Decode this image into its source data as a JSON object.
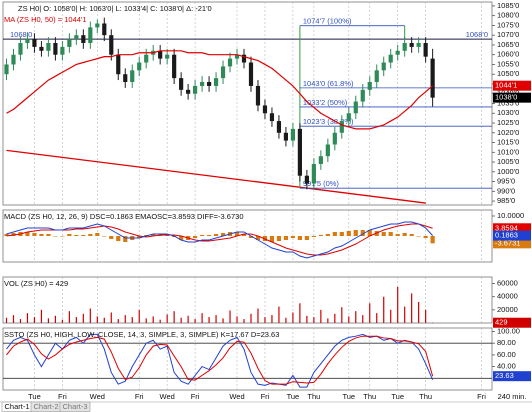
{
  "chart_data": [
    {
      "type": "candlestick",
      "title": "ZS H0| O: 1058'0| H: 1063'0| L: 1033'4| C: 1038'0| Δ: -21'0",
      "subtitle": "MA (ZS H0, 50) = 1044'1",
      "up_color": "#2e8b57",
      "down_color": "#1a1a1a",
      "last_color": "#000000",
      "last_label": "1038'0",
      "open": [
        1050,
        1055,
        1060,
        1066,
        1068,
        1064,
        1062,
        1066,
        1060,
        1064,
        1068,
        1070,
        1066,
        1074,
        1076,
        1070,
        1060,
        1050,
        1046,
        1052,
        1056,
        1060,
        1062,
        1058,
        1060,
        1048,
        1042,
        1040,
        1044,
        1046,
        1044,
        1048,
        1054,
        1058,
        1060,
        1056,
        1044,
        1034,
        1030,
        1026,
        1020,
        1016,
        1022,
        998,
        994,
        1004,
        1008,
        1014,
        1020,
        1026,
        1030,
        1036,
        1042,
        1046,
        1052,
        1056,
        1060,
        1062,
        1066,
        1064,
        1066,
        1058,
        null,
        null,
        null,
        null,
        null,
        null,
        null,
        null
      ],
      "high": [
        1058,
        1063,
        1069,
        1071,
        1071,
        1067,
        1069,
        1069,
        1067,
        1071,
        1073,
        1073,
        1077,
        1078,
        1079,
        1073,
        1063,
        1053,
        1055,
        1059,
        1063,
        1065,
        1065,
        1063,
        1063,
        1051,
        1045,
        1047,
        1049,
        1049,
        1051,
        1057,
        1061,
        1063,
        1063,
        1059,
        1047,
        1037,
        1033,
        1029,
        1023,
        1025,
        1025,
        1001,
        1007,
        1011,
        1017,
        1023,
        1029,
        1033,
        1039,
        1045,
        1049,
        1055,
        1059,
        1063,
        1065,
        1069,
        1069,
        1069,
        1069,
        1063,
        null,
        null,
        null,
        null,
        null,
        null,
        null,
        null
      ],
      "low": [
        1047,
        1052,
        1057,
        1063,
        1061,
        1059,
        1059,
        1057,
        1057,
        1061,
        1065,
        1063,
        1063,
        1071,
        1067,
        1057,
        1047,
        1043,
        1043,
        1049,
        1053,
        1057,
        1055,
        1055,
        1045,
        1039,
        1037,
        1037,
        1041,
        1041,
        1041,
        1045,
        1051,
        1055,
        1053,
        1041,
        1031,
        1027,
        1023,
        1017,
        1013,
        1013,
        995,
        991,
        991,
        1001,
        1005,
        1011,
        1017,
        1023,
        1027,
        1033,
        1039,
        1043,
        1049,
        1053,
        1057,
        1059,
        1061,
        1061,
        1056,
        1033.5,
        null,
        null,
        null,
        null,
        null,
        null,
        null,
        null
      ],
      "close": [
        1055,
        1060,
        1066,
        1068,
        1064,
        1062,
        1066,
        1060,
        1064,
        1068,
        1070,
        1066,
        1074,
        1076,
        1070,
        1060,
        1050,
        1046,
        1052,
        1056,
        1060,
        1062,
        1058,
        1060,
        1048,
        1042,
        1040,
        1044,
        1046,
        1044,
        1048,
        1054,
        1058,
        1060,
        1056,
        1044,
        1034,
        1030,
        1026,
        1020,
        1016,
        1022,
        998,
        994,
        1004,
        1008,
        1014,
        1020,
        1026,
        1030,
        1036,
        1042,
        1046,
        1052,
        1056,
        1060,
        1062,
        1066,
        1064,
        1066,
        1059,
        1038,
        null,
        null,
        null,
        null,
        null,
        null,
        null,
        null
      ],
      "ma": {
        "color": "#e00000",
        "last_label": "1044'1",
        "values": [
          1030,
          1032,
          1035,
          1038,
          1041,
          1044,
          1047,
          1049,
          1051,
          1053,
          1055,
          1056,
          1057,
          1058,
          1059,
          1059,
          1060,
          1060,
          1060,
          1061,
          1061,
          1061,
          1062,
          1062,
          1062,
          1062,
          1061,
          1061,
          1061,
          1060,
          1060,
          1060,
          1060,
          1060,
          1059,
          1058,
          1057,
          1055,
          1053,
          1050,
          1047,
          1044,
          1040,
          1036,
          1033,
          1030,
          1028,
          1026,
          1024,
          1023,
          1022,
          1022,
          1022,
          1023,
          1024,
          1026,
          1028,
          1031,
          1034,
          1038,
          1041,
          1044.125,
          null,
          null,
          null,
          null,
          null,
          null,
          null,
          null
        ]
      },
      "hline": {
        "value": 1068,
        "label": "1068'0",
        "color": "#1a1a40"
      },
      "fib": {
        "color": "#3050c0",
        "edge_color": "#2e9e3e",
        "x": [
          42,
          57
        ],
        "levels": [
          {
            "value": 1074.875,
            "label": "1074'7 (100%)"
          },
          {
            "value": 1043,
            "label": "1043'0 (61.8%)"
          },
          {
            "value": 1033.25,
            "label": "1033'2 (50%)"
          },
          {
            "value": 1023.375,
            "label": "1023'3 (38.2%)"
          },
          {
            "value": 991.625,
            "label": "991'5 (0%)"
          }
        ]
      },
      "trendline": {
        "color": "#e00000",
        "x": [
          0,
          60
        ],
        "values": [
          1011,
          984
        ]
      },
      "ylim": [
        983,
        1087
      ],
      "yticks": [
        {
          "value": 985,
          "label": "985'0"
        },
        {
          "value": 990,
          "label": "990'0"
        },
        {
          "value": 995,
          "label": "995'0"
        },
        {
          "value": 1000,
          "label": "1000'0"
        },
        {
          "value": 1005,
          "label": "1005'0"
        },
        {
          "value": 1010,
          "label": "1010'0"
        },
        {
          "value": 1015,
          "label": "1015'0"
        },
        {
          "value": 1020,
          "label": "1020'0"
        },
        {
          "value": 1025,
          "label": "1025'0"
        },
        {
          "value": 1030,
          "label": "1030'0"
        },
        {
          "value": 1035,
          "label": "1035'0"
        },
        {
          "value": 1040,
          "label": "1040'0"
        },
        {
          "value": 1045,
          "label": "1045'0"
        },
        {
          "value": 1050,
          "label": "1050'0"
        },
        {
          "value": 1055,
          "label": "1055'0"
        },
        {
          "value": 1060,
          "label": "1060'0"
        },
        {
          "value": 1065,
          "label": "1065'0"
        },
        {
          "value": 1070,
          "label": "1070'0"
        },
        {
          "value": 1075,
          "label": "1075'0"
        },
        {
          "value": 1080,
          "label": "1080'0"
        },
        {
          "value": 1085,
          "label": "1085'0"
        }
      ]
    },
    {
      "type": "line",
      "title": "MACD (ZS H0, 12, 26, 9)  DSC=0.1863  EMAOSC=3.8593  DIFF=-3.6730",
      "ylim": [
        -13,
        13
      ],
      "yticks": [
        {
          "value": 10,
          "label": "10.0000"
        }
      ],
      "series": [
        {
          "style": "bar",
          "color": "#d87a10",
          "last_box": true,
          "values": [
            1,
            1.5,
            2,
            2,
            1.5,
            1,
            1,
            0,
            0,
            1,
            0.5,
            0.5,
            1,
            1.5,
            0,
            -1.5,
            -2.5,
            -3,
            -2,
            -1,
            0.5,
            1,
            0.5,
            0.5,
            -0.5,
            -2,
            -2,
            -1,
            0.5,
            0.5,
            1,
            1.5,
            2,
            2,
            1,
            -1,
            -2,
            -2.5,
            -3,
            -2.5,
            -2,
            -1,
            -2,
            -2,
            -0.5,
            0.5,
            1,
            2,
            2,
            2.5,
            3,
            3,
            3,
            2.5,
            2,
            2,
            1,
            1.5,
            1,
            0,
            -1,
            -3.6731,
            null,
            null,
            null,
            null,
            null,
            null,
            null,
            null
          ]
        },
        {
          "color": "#e00000",
          "last_box": true,
          "values": [
            0,
            0.5,
            1,
            2,
            2.5,
            3,
            3,
            3,
            3,
            3,
            3.5,
            3.5,
            4,
            4.5,
            5,
            4.5,
            3.5,
            2,
            1,
            0,
            -0.5,
            0,
            0.5,
            0.5,
            0.5,
            0,
            -1,
            -2,
            -2.5,
            -2.5,
            -2,
            -1.5,
            -1,
            0,
            1,
            1,
            0,
            -1.5,
            -3,
            -4.5,
            -6,
            -7,
            -8,
            -9,
            -9.5,
            -9.5,
            -9,
            -8,
            -7,
            -5.5,
            -4,
            -2,
            0,
            1.5,
            3,
            4,
            5,
            5.5,
            6,
            6,
            5,
            3.8594,
            null,
            null,
            null,
            null,
            null,
            null,
            null,
            null
          ]
        },
        {
          "color": "#2040d0",
          "last_box": true,
          "values": [
            1,
            2,
            3,
            4,
            4,
            4,
            4,
            3,
            3,
            4,
            4,
            4,
            5,
            6,
            5,
            3,
            1,
            -1,
            -1,
            -1,
            0,
            1,
            1,
            1,
            0,
            -2,
            -3,
            -3,
            -2,
            -2,
            -1,
            0,
            1,
            2,
            2,
            0,
            -2,
            -4,
            -6,
            -7,
            -8,
            -8,
            -10,
            -11,
            -10,
            -9,
            -8,
            -6,
            -5,
            -3,
            -1,
            1,
            3,
            4,
            5,
            6,
            6,
            7,
            7,
            6,
            4,
            0.1863,
            null,
            null,
            null,
            null,
            null,
            null,
            null,
            null
          ]
        }
      ]
    },
    {
      "type": "bar",
      "title": "VOL (ZS H0) = 429",
      "color": "#d00000",
      "last_box": true,
      "ylim": [
        0,
        70000
      ],
      "yticks": [
        20000,
        40000,
        60000
      ],
      "values": [
        8000,
        12000,
        6000,
        15000,
        9000,
        20000,
        7000,
        11000,
        5000,
        18000,
        9000,
        14000,
        22000,
        10000,
        8000,
        16000,
        6000,
        12000,
        9000,
        20000,
        7000,
        10000,
        5000,
        13000,
        18000,
        8000,
        11000,
        6000,
        15000,
        9000,
        12000,
        7000,
        19000,
        10000,
        6000,
        14000,
        22000,
        9000,
        12000,
        25000,
        8000,
        16000,
        30000,
        11000,
        9000,
        20000,
        7000,
        14000,
        24000,
        10000,
        18000,
        12000,
        30000,
        15000,
        40000,
        20000,
        55000,
        25000,
        45000,
        32000,
        20000,
        429,
        null,
        null,
        null,
        null,
        null,
        null,
        null,
        null
      ]
    },
    {
      "type": "line",
      "title": "SSTO (ZS H0, HIGH, LOW, CLOSE, 14, 3, SIMPLE, 3, SIMPLE)  K=17.67  D=23.63",
      "ylim": [
        0,
        106
      ],
      "yticks": [
        {
          "value": 40,
          "label": "40.00"
        },
        {
          "value": 60,
          "label": "60.00"
        },
        {
          "value": 80,
          "label": "80.00"
        },
        {
          "value": 100,
          "label": "100.00"
        }
      ],
      "levels": [
        80,
        20
      ],
      "level_color": "#333333",
      "categories": [
        null,
        null,
        null,
        null,
        "Tue",
        null,
        null,
        null,
        "Fri",
        null,
        null,
        null,
        null,
        "Wed",
        null,
        null,
        null,
        null,
        null,
        "Fri",
        null,
        null,
        null,
        "Wed",
        null,
        null,
        null,
        "Fri",
        null,
        null,
        null,
        null,
        null,
        "Wed",
        null,
        null,
        null,
        "Fri",
        null,
        null,
        null,
        "Tue",
        null,
        null,
        "Thu",
        null,
        null,
        null,
        null,
        "Tue",
        null,
        null,
        "Thu",
        null,
        null,
        null,
        "Tue",
        null,
        null,
        null,
        "Thu",
        null,
        null,
        null,
        null,
        null,
        null,
        null,
        "Fri",
        null
      ],
      "x_label": "240 min.",
      "series": [
        {
          "color": "#2040d0",
          "values": [
            70,
            85,
            90,
            85,
            60,
            40,
            60,
            80,
            70,
            85,
            90,
            80,
            95,
            95,
            70,
            30,
            10,
            15,
            40,
            60,
            80,
            85,
            70,
            75,
            30,
            15,
            10,
            25,
            40,
            35,
            55,
            75,
            85,
            90,
            70,
            30,
            10,
            8,
            12,
            10,
            8,
            25,
            5,
            5,
            30,
            45,
            60,
            75,
            85,
            90,
            92,
            95,
            90,
            92,
            85,
            88,
            80,
            85,
            82,
            70,
            45,
            17.67,
            null,
            null,
            null,
            null,
            null,
            null,
            null,
            null
          ]
        },
        {
          "color": "#e00000",
          "last_box": true,
          "box_color": "#2040d0",
          "values": [
            60,
            75,
            82,
            87,
            78,
            62,
            53,
            60,
            70,
            78,
            82,
            85,
            88,
            90,
            87,
            65,
            37,
            18,
            22,
            38,
            60,
            75,
            78,
            77,
            58,
            40,
            18,
            17,
            25,
            33,
            43,
            55,
            72,
            83,
            82,
            63,
            37,
            16,
            10,
            10,
            10,
            14,
            13,
            12,
            13,
            27,
            45,
            60,
            73,
            83,
            89,
            92,
            92,
            92,
            89,
            88,
            84,
            84,
            82,
            79,
            66,
            23.63,
            null,
            null,
            null,
            null,
            null,
            null,
            null,
            null
          ]
        }
      ]
    }
  ],
  "tabs": [
    "Chart-1",
    "Chart-2",
    "Chart-3"
  ]
}
